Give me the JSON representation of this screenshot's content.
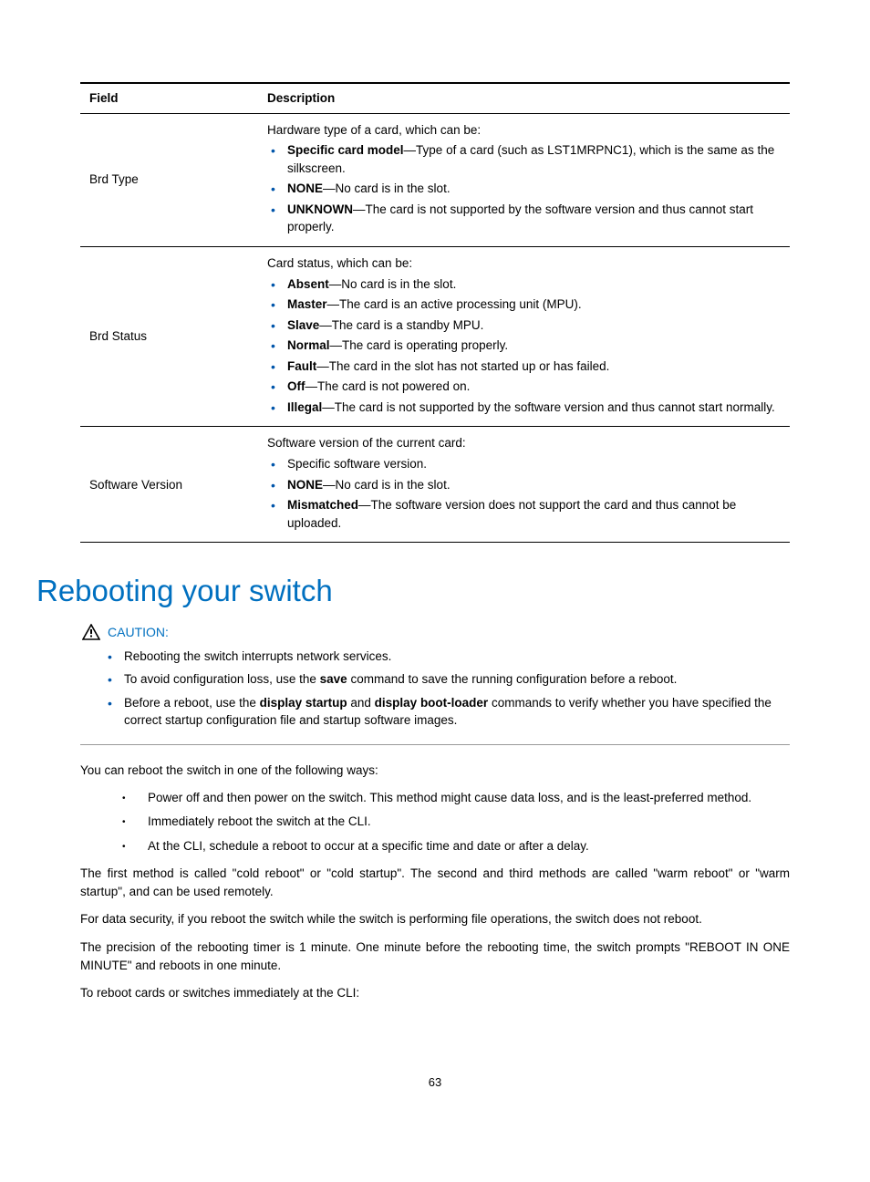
{
  "table": {
    "headers": {
      "field": "Field",
      "description": "Description"
    },
    "rows": [
      {
        "field": "Brd Type",
        "intro": "Hardware type of a card, which can be:",
        "items": [
          {
            "term": "Specific card model",
            "text": "—Type of a card (such as LST1MRPNC1), which is the same as the silkscreen."
          },
          {
            "term": "NONE",
            "text": "—No card is in the slot."
          },
          {
            "term": "UNKNOWN",
            "text": "—The card is not supported by the software version and thus cannot start properly."
          }
        ]
      },
      {
        "field": "Brd Status",
        "intro": "Card status, which can be:",
        "items": [
          {
            "term": "Absent",
            "text": "—No card is in the slot."
          },
          {
            "term": "Master",
            "text": "—The card is an active processing unit (MPU)."
          },
          {
            "term": "Slave",
            "text": "—The card is a standby MPU."
          },
          {
            "term": "Normal",
            "text": "—The card is operating properly."
          },
          {
            "term": "Fault",
            "text": "—The card in the slot has not started up or has failed."
          },
          {
            "term": "Off",
            "text": "—The card is not powered on."
          },
          {
            "term": "Illegal",
            "text": "—The card is not supported by the software version and thus cannot start normally."
          }
        ]
      },
      {
        "field": "Software Version",
        "intro": "Software version of the current card:",
        "items": [
          {
            "term": "",
            "text": "Specific software version."
          },
          {
            "term": "NONE",
            "text": "—No card is in the slot."
          },
          {
            "term": "Mismatched",
            "text": "—The software version does not support the card and thus cannot be uploaded."
          }
        ]
      }
    ]
  },
  "heading": "Rebooting your switch",
  "caution": {
    "label": "CAUTION:",
    "items": [
      [
        {
          "t": "Rebooting the switch interrupts network services."
        }
      ],
      [
        {
          "t": "To avoid configuration loss, use the "
        },
        {
          "b": "save"
        },
        {
          "t": " command to save the running configuration before a reboot."
        }
      ],
      [
        {
          "t": "Before a reboot, use the "
        },
        {
          "b": "display startup"
        },
        {
          "t": " and "
        },
        {
          "b": "display boot-loader"
        },
        {
          "t": " commands to verify whether you have specified the correct startup configuration file and startup software images."
        }
      ]
    ]
  },
  "body": {
    "intro": "You can reboot the switch in one of the following ways:",
    "ways": [
      "Power off and then power on the switch. This method might cause data loss, and is the least-preferred method.",
      "Immediately reboot the switch at the CLI.",
      "At the CLI, schedule a reboot to occur at a specific time and date or after a delay."
    ],
    "p1": "The first method is called \"cold reboot\" or \"cold startup\". The second and third methods are called \"warm reboot\" or \"warm startup\", and can be used remotely.",
    "p2": "For data security, if you reboot the switch while the switch is performing file operations, the switch does not reboot.",
    "p3": "The precision of the rebooting timer is 1 minute. One minute before the rebooting time, the switch prompts \"REBOOT IN ONE MINUTE\" and reboots in one minute.",
    "p4": "To reboot cards or switches immediately at the CLI:"
  },
  "pageNumber": "63",
  "colors": {
    "accent": "#0070c0",
    "bullet": "#0055aa"
  }
}
